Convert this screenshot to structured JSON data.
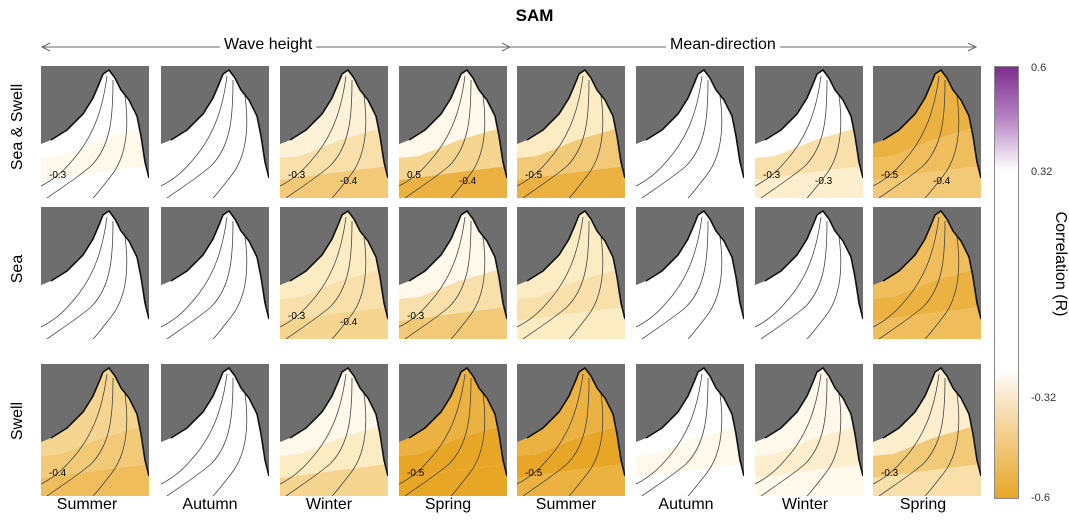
{
  "chart_data": {
    "type": "heatmap",
    "title": "SAM",
    "group_labels": [
      "Wave height",
      "Mean-direction"
    ],
    "row_labels": [
      "Sea & Swell",
      "Sea",
      "Swell"
    ],
    "column_labels": [
      "Summer",
      "Autumn",
      "Winter",
      "Spring",
      "Summer",
      "Autumn",
      "Winter",
      "Spring"
    ],
    "colorbar": {
      "label": "Correlation (R)",
      "range": [
        -0.6,
        0.6
      ],
      "ticks": [
        "0.6",
        "0.32",
        "-0.32",
        "-0.6"
      ]
    },
    "panels": [
      [
        {
          "fill_levels": [
            0.0,
            0.1,
            0.0
          ],
          "contour_labels": [
            "-0.3"
          ]
        },
        {
          "fill_levels": [
            0.0,
            0.0,
            0.0
          ],
          "contour_labels": []
        },
        {
          "fill_levels": [
            0.2,
            0.35,
            0.45
          ],
          "contour_labels": [
            "-0.3",
            "-0.4"
          ]
        },
        {
          "fill_levels": [
            0.1,
            0.4,
            0.55
          ],
          "contour_labels": [
            "0.5",
            "-0.4"
          ]
        },
        {
          "fill_levels": [
            0.3,
            0.45,
            0.55
          ],
          "contour_labels": [
            "-0.5"
          ]
        },
        {
          "fill_levels": [
            0.0,
            0.0,
            0.0
          ],
          "contour_labels": []
        },
        {
          "fill_levels": [
            0.0,
            0.35,
            0.25
          ],
          "contour_labels": [
            "-0.3",
            "-0.3"
          ]
        },
        {
          "fill_levels": [
            0.55,
            0.5,
            0.45
          ],
          "contour_labels": [
            "-0.5",
            "-0.4"
          ]
        }
      ],
      [
        {
          "fill_levels": [
            0.0,
            0.0,
            0.0
          ],
          "contour_labels": []
        },
        {
          "fill_levels": [
            0.0,
            0.0,
            0.0
          ],
          "contour_labels": []
        },
        {
          "fill_levels": [
            0.3,
            0.35,
            0.4
          ],
          "contour_labels": [
            "-0.3",
            "-0.4"
          ]
        },
        {
          "fill_levels": [
            0.1,
            0.35,
            0.45
          ],
          "contour_labels": [
            "-0.3"
          ]
        },
        {
          "fill_levels": [
            0.3,
            0.35,
            0.3
          ],
          "contour_labels": []
        },
        {
          "fill_levels": [
            0.0,
            0.0,
            0.0
          ],
          "contour_labels": []
        },
        {
          "fill_levels": [
            0.0,
            0.0,
            0.0
          ],
          "contour_labels": []
        },
        {
          "fill_levels": [
            0.5,
            0.55,
            0.5
          ],
          "contour_labels": []
        }
      ],
      [
        {
          "fill_levels": [
            0.4,
            0.45,
            0.5
          ],
          "contour_labels": [
            "-0.4"
          ]
        },
        {
          "fill_levels": [
            0.0,
            0.0,
            0.0
          ],
          "contour_labels": []
        },
        {
          "fill_levels": [
            0.1,
            0.3,
            0.4
          ],
          "contour_labels": []
        },
        {
          "fill_levels": [
            0.55,
            0.6,
            0.6
          ],
          "contour_labels": [
            "-0.5"
          ]
        },
        {
          "fill_levels": [
            0.55,
            0.6,
            0.55
          ],
          "contour_labels": [
            "-0.5"
          ]
        },
        {
          "fill_levels": [
            0.0,
            0.1,
            0.0
          ],
          "contour_labels": []
        },
        {
          "fill_levels": [
            0.1,
            0.25,
            0.1
          ],
          "contour_labels": []
        },
        {
          "fill_levels": [
            0.25,
            0.45,
            0.35
          ],
          "contour_labels": [
            "-0.3"
          ]
        }
      ]
    ]
  }
}
